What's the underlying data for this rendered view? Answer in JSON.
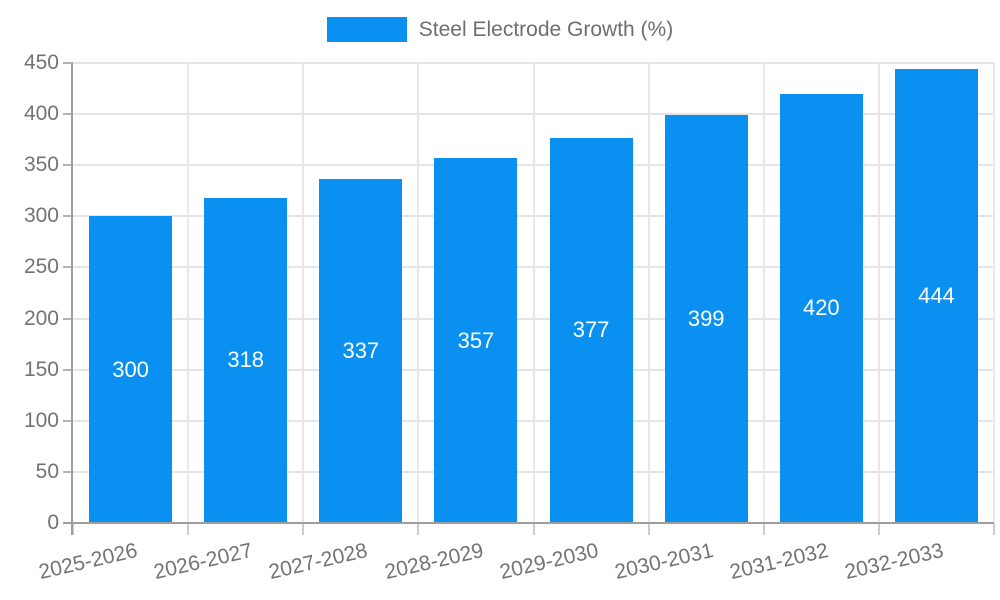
{
  "chart_data": {
    "type": "bar",
    "title": "Steel Electrode Growth (%)",
    "legend_label": "Steel Electrode Growth (%)",
    "legend_position": "top",
    "categories": [
      "2025-2026",
      "2026-2027",
      "2027-2028",
      "2028-2029",
      "2029-2030",
      "2030-2031",
      "2031-2032",
      "2032-2033"
    ],
    "series": [
      {
        "name": "Steel Electrode Growth (%)",
        "values": [
          300,
          318,
          337,
          357,
          377,
          399,
          420,
          444
        ]
      }
    ],
    "xlabel": "",
    "ylabel": "",
    "ylim": [
      0,
      450
    ],
    "yticks": [
      0,
      50,
      100,
      150,
      200,
      250,
      300,
      350,
      400,
      450
    ],
    "grid": true,
    "bar_color": "#0a90f0",
    "bar_label_color": "#ffffff",
    "axis_text_color": "#737373"
  }
}
